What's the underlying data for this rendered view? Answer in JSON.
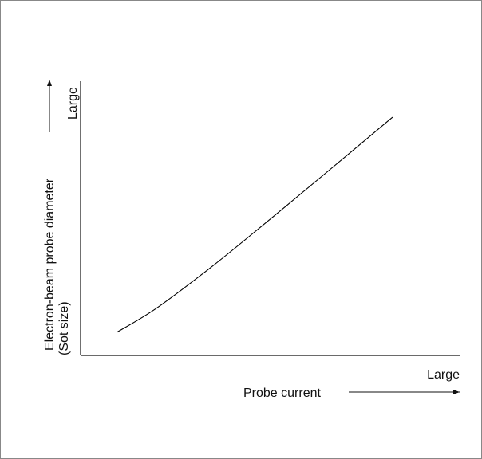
{
  "chart_data": {
    "type": "line",
    "xlabel": "Probe current",
    "ylabel": [
      "Electron-beam probe diameter",
      "(Sot size)"
    ],
    "x_end_label": "Large",
    "y_end_label": "Large",
    "x": [
      0.095,
      0.2,
      0.35,
      0.5,
      0.65,
      0.823
    ],
    "values": [
      0.084,
      0.172,
      0.328,
      0.497,
      0.669,
      0.869
    ],
    "color": "#000000",
    "xlim": [
      0,
      1
    ],
    "ylim": [
      0,
      1
    ]
  }
}
